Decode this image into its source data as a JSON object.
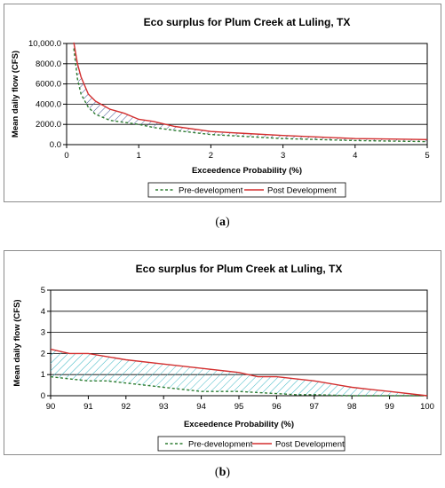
{
  "captions": {
    "a": "a",
    "b": "b"
  },
  "colors": {
    "pre": "#2e7d32",
    "post": "#d32f2f",
    "hatch_a": "#4b5b9a",
    "hatch_b": "#3fb8c4"
  },
  "chart_data": [
    {
      "type": "area",
      "title": "Eco surplus for Plum Creek at Luling, TX",
      "xlabel": "Exceedence Probability (%)",
      "ylabel": "Mean daily flow (CFS)",
      "xlim": [
        0,
        5
      ],
      "ylim": [
        0,
        10000
      ],
      "xticks": [
        0,
        1,
        2,
        3,
        4,
        5
      ],
      "xtick_labels": [
        "0",
        "1",
        "2",
        "3",
        "4",
        "5"
      ],
      "yticks": [
        0,
        2000,
        4000,
        6000,
        8000,
        10000
      ],
      "ytick_labels": [
        "0.0",
        "2000.0",
        "4000.0",
        "6000.0",
        "8000.0",
        "10,000.0"
      ],
      "grid": "horizontal",
      "legend": "bottom",
      "series": [
        {
          "name": "Pre-development",
          "style": "dashed",
          "x": [
            0.1,
            0.15,
            0.2,
            0.3,
            0.4,
            0.5,
            0.6,
            0.8,
            1.0,
            1.2,
            1.5,
            2.0,
            2.5,
            3.0,
            3.5,
            4.0,
            4.5,
            5.0
          ],
          "y": [
            9500,
            6500,
            5000,
            3700,
            3000,
            2700,
            2400,
            2200,
            2000,
            1700,
            1400,
            1000,
            800,
            600,
            500,
            400,
            350,
            300
          ]
        },
        {
          "name": "Post Development",
          "style": "solid",
          "x": [
            0.1,
            0.15,
            0.2,
            0.3,
            0.4,
            0.5,
            0.6,
            0.8,
            1.0,
            1.2,
            1.5,
            2.0,
            2.5,
            3.0,
            3.5,
            4.0,
            4.5,
            5.0
          ],
          "y": [
            10100,
            8000,
            6700,
            5000,
            4300,
            3900,
            3500,
            3100,
            2500,
            2300,
            1800,
            1300,
            1100,
            900,
            750,
            600,
            550,
            500
          ]
        }
      ]
    },
    {
      "type": "area",
      "title": "Eco surplus for Plum Creek at Luling, TX",
      "xlabel": "Exceedence Probability (%)",
      "ylabel": "Mean daily flow (CFS)",
      "xlim": [
        90,
        100
      ],
      "ylim": [
        0,
        5
      ],
      "xticks": [
        90,
        91,
        92,
        93,
        94,
        95,
        96,
        97,
        98,
        99,
        100
      ],
      "xtick_labels": [
        "90",
        "91",
        "92",
        "93",
        "94",
        "95",
        "96",
        "97",
        "98",
        "99",
        "100"
      ],
      "yticks": [
        0,
        1,
        2,
        3,
        4,
        5
      ],
      "ytick_labels": [
        "0",
        "1",
        "2",
        "3",
        "4",
        "5"
      ],
      "grid": "horizontal",
      "legend": "bottom",
      "series": [
        {
          "name": "Pre-development",
          "style": "dashed",
          "x": [
            90,
            90.5,
            91,
            91.5,
            92,
            93,
            94,
            95,
            95.5,
            96,
            96.5,
            97,
            98,
            99,
            100
          ],
          "y": [
            0.9,
            0.8,
            0.7,
            0.7,
            0.6,
            0.4,
            0.2,
            0.2,
            0.15,
            0.1,
            0.05,
            0.05,
            0.0,
            0.0,
            0.0
          ]
        },
        {
          "name": "Post Development",
          "style": "solid",
          "x": [
            90,
            90.5,
            91,
            92,
            93,
            94,
            95,
            95.5,
            96,
            97,
            98,
            98.5,
            99,
            100
          ],
          "y": [
            2.2,
            2.0,
            2.0,
            1.7,
            1.5,
            1.3,
            1.1,
            0.9,
            0.9,
            0.7,
            0.4,
            0.3,
            0.2,
            0.0
          ]
        }
      ]
    }
  ]
}
